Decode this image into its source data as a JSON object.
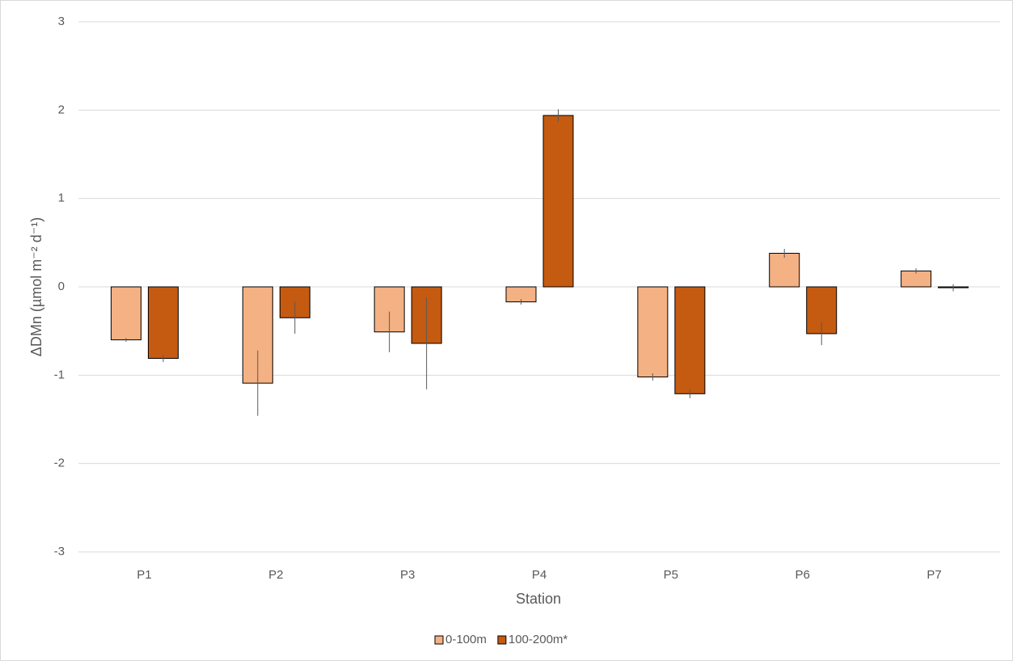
{
  "chart_data": {
    "type": "bar",
    "x_label": "Station",
    "y_label": "ΔDMn (µmol m⁻² d⁻¹)",
    "categories": [
      "P1",
      "P2",
      "P3",
      "P4",
      "P5",
      "P6",
      "P7"
    ],
    "series": [
      {
        "name": "0-100m",
        "color": "#f4b183",
        "values": [
          -0.6,
          -1.09,
          -0.51,
          -0.17,
          -1.02,
          0.38,
          0.18
        ],
        "errors": [
          0.02,
          0.37,
          0.23,
          0.03,
          0.04,
          0.05,
          0.03
        ]
      },
      {
        "name": "100-200m*",
        "color": "#c55a11",
        "values": [
          -0.81,
          -0.35,
          -0.64,
          1.94,
          -1.21,
          -0.53,
          -0.01
        ],
        "errors": [
          0.04,
          0.18,
          0.52,
          0.07,
          0.05,
          0.13,
          0.04
        ]
      }
    ],
    "ylim": [
      -3,
      3
    ],
    "yticks": [
      -3,
      -2,
      -1,
      0,
      1,
      2,
      3
    ],
    "grid": true,
    "legend": "bottom"
  }
}
